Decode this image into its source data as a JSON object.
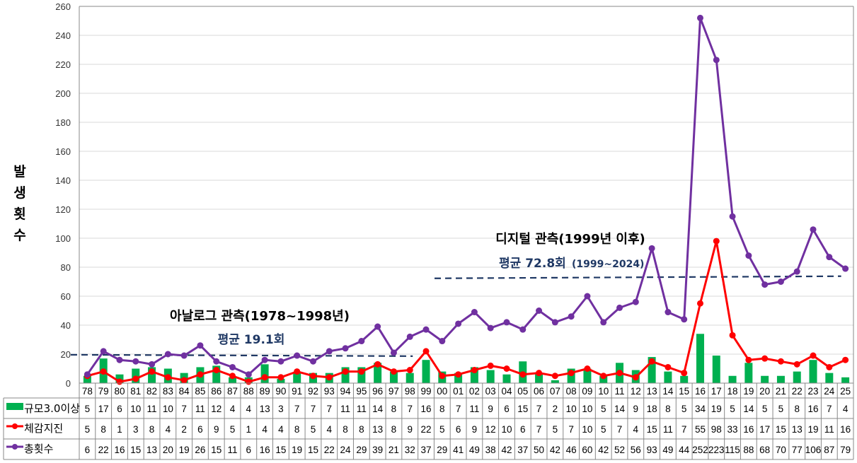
{
  "chart_data": {
    "type": "bar+line",
    "title": "",
    "xlabel": "",
    "ylabel": "발생횟수",
    "ylim": [
      0,
      260
    ],
    "yticks": [
      0,
      20,
      40,
      60,
      80,
      100,
      120,
      140,
      160,
      180,
      200,
      220,
      240,
      260
    ],
    "grid": true,
    "legend_position": "data-table-left",
    "categories": [
      "78",
      "79",
      "80",
      "81",
      "82",
      "83",
      "84",
      "85",
      "86",
      "87",
      "88",
      "89",
      "90",
      "91",
      "92",
      "93",
      "94",
      "95",
      "96",
      "97",
      "98",
      "99",
      "00",
      "01",
      "02",
      "03",
      "04",
      "05",
      "06",
      "07",
      "08",
      "09",
      "10",
      "11",
      "12",
      "13",
      "14",
      "15",
      "16",
      "17",
      "18",
      "19",
      "20",
      "21",
      "22",
      "23",
      "24",
      "25"
    ],
    "series": [
      {
        "name": "규모3.0이상",
        "type": "bar",
        "color": "#00B050",
        "values": [
          5,
          17,
          6,
          10,
          11,
          10,
          7,
          11,
          12,
          4,
          4,
          13,
          3,
          7,
          7,
          7,
          11,
          11,
          14,
          8,
          7,
          16,
          8,
          7,
          11,
          9,
          6,
          15,
          7,
          2,
          10,
          10,
          5,
          14,
          9,
          18,
          8,
          5,
          34,
          19,
          5,
          14,
          5,
          5,
          8,
          16,
          7,
          4
        ]
      },
      {
        "name": "체감지진",
        "type": "line",
        "color": "#FF0000",
        "values": [
          5,
          8,
          1,
          3,
          8,
          4,
          2,
          6,
          9,
          5,
          1,
          4,
          4,
          8,
          5,
          4,
          8,
          8,
          13,
          8,
          9,
          22,
          5,
          6,
          9,
          12,
          10,
          6,
          7,
          5,
          7,
          10,
          5,
          7,
          4,
          15,
          11,
          7,
          55,
          98,
          33,
          16,
          17,
          15,
          13,
          19,
          11,
          16
        ]
      },
      {
        "name": "총횟수",
        "type": "line",
        "color": "#7030A0",
        "values": [
          6,
          22,
          16,
          15,
          13,
          20,
          19,
          26,
          15,
          11,
          6,
          16,
          15,
          19,
          15,
          22,
          24,
          29,
          39,
          21,
          32,
          37,
          29,
          41,
          49,
          38,
          42,
          37,
          50,
          42,
          46,
          60,
          42,
          52,
          56,
          93,
          49,
          44,
          252,
          223,
          115,
          88,
          68,
          70,
          77,
          106,
          87,
          79
        ]
      }
    ],
    "annotations": [
      {
        "id": "analog",
        "title": "아날로그 관측(1978~1998년)",
        "avg_label": "평균 19.1회",
        "avg_value": 19.1,
        "line_from": "78",
        "line_to": "98"
      },
      {
        "id": "digital",
        "title": "디지털 관측(1999년 이후)",
        "avg_label": "평균 72.8회",
        "avg_range": "(1999~2024)",
        "avg_value": 72.8,
        "line_from": "99",
        "line_to": "25"
      }
    ],
    "data_table": true
  },
  "colors": {
    "bar": "#00B050",
    "felt": "#FF0000",
    "total": "#7030A0",
    "avg_line": "#1F3864",
    "grid": "#D9D9D9",
    "axis": "#888888"
  },
  "ylabel_chars": [
    "발",
    "생",
    "횟",
    "수"
  ]
}
